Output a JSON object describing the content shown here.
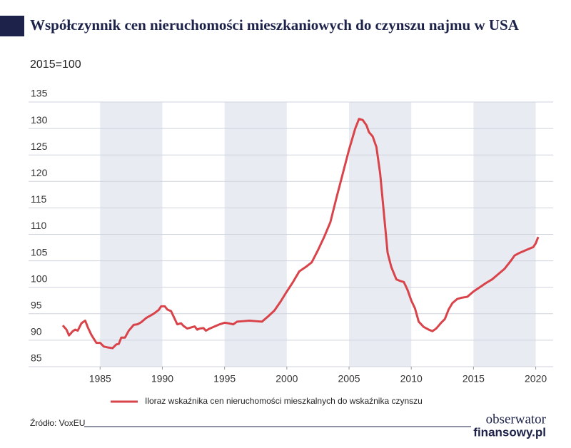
{
  "chart_data": {
    "type": "line",
    "title": "Współczynnik cen nieruchomości mieszkaniowych do czynszu najmu w USA",
    "subtitle": "2015=100",
    "x": [
      1982.0,
      1982.3,
      1982.5,
      1982.8,
      1983.0,
      1983.2,
      1983.5,
      1983.8,
      1984.0,
      1984.3,
      1984.7,
      1985.0,
      1985.3,
      1985.7,
      1986.0,
      1986.3,
      1986.5,
      1986.7,
      1987.0,
      1987.3,
      1987.7,
      1988.0,
      1988.3,
      1988.7,
      1989.0,
      1989.3,
      1989.7,
      1989.9,
      1990.2,
      1990.4,
      1990.7,
      1991.0,
      1991.2,
      1991.5,
      1991.7,
      1992.0,
      1992.3,
      1992.6,
      1992.8,
      1993.0,
      1993.3,
      1993.5,
      1993.8,
      1994.2,
      1994.6,
      1995.0,
      1995.3,
      1995.7,
      1996.0,
      1996.5,
      1997.0,
      1997.5,
      1998.0,
      1998.5,
      1999.0,
      1999.5,
      2000.0,
      2000.5,
      2001.0,
      2001.5,
      2002.0,
      2002.5,
      2003.0,
      2003.5,
      2004.0,
      2004.5,
      2005.0,
      2005.5,
      2005.8,
      2006.1,
      2006.4,
      2006.6,
      2006.9,
      2007.2,
      2007.5,
      2007.8,
      2008.1,
      2008.4,
      2008.8,
      2009.1,
      2009.4,
      2009.7,
      2010.0,
      2010.3,
      2010.6,
      2011.0,
      2011.4,
      2011.7,
      2012.0,
      2012.4,
      2012.7,
      2013.0,
      2013.3,
      2013.7,
      2014.0,
      2014.5,
      2015.0,
      2015.5,
      2016.0,
      2016.5,
      2017.0,
      2017.5,
      2018.0,
      2018.3,
      2018.7,
      2019.0,
      2019.5,
      2019.8,
      2020.0,
      2020.2
    ],
    "series": [
      {
        "name": "Iloraz wskaźnika cen nieruchomości mieszkalnych do wskaźnika czynszu",
        "color": "#d9434a",
        "values": [
          92.8,
          92.0,
          90.9,
          91.7,
          92.0,
          91.8,
          93.2,
          93.7,
          92.5,
          91.0,
          89.5,
          89.5,
          88.8,
          88.6,
          88.5,
          89.2,
          89.3,
          90.5,
          90.5,
          91.8,
          92.9,
          93.0,
          93.4,
          94.2,
          94.6,
          95.0,
          95.7,
          96.4,
          96.4,
          95.8,
          95.5,
          94.0,
          93.0,
          93.2,
          92.7,
          92.2,
          92.4,
          92.6,
          92.0,
          92.2,
          92.3,
          91.8,
          92.2,
          92.6,
          93.0,
          93.3,
          93.2,
          93.0,
          93.5,
          93.6,
          93.7,
          93.6,
          93.5,
          94.5,
          95.6,
          97.3,
          99.2,
          101.0,
          103.0,
          103.8,
          104.7,
          107.0,
          109.5,
          112.3,
          117.0,
          121.5,
          126.0,
          130.0,
          131.8,
          131.6,
          130.6,
          129.3,
          128.5,
          126.5,
          121.5,
          114.0,
          106.5,
          103.8,
          101.5,
          101.2,
          101.0,
          99.5,
          97.5,
          96.0,
          93.5,
          92.5,
          92.0,
          91.7,
          92.2,
          93.3,
          94.0,
          95.8,
          97.0,
          97.8,
          98.0,
          98.2,
          99.2,
          100.0,
          100.8,
          101.5,
          102.5,
          103.5,
          105.0,
          106.0,
          106.5,
          106.8,
          107.3,
          107.6,
          108.3,
          109.5
        ]
      }
    ],
    "xlim": [
      1979.25,
      2021.4
    ],
    "xticks": [
      1985,
      1990,
      1995,
      2000,
      2005,
      2010,
      2015,
      2020
    ],
    "ylim": [
      85,
      135
    ],
    "yticks": [
      85,
      90,
      95,
      100,
      105,
      110,
      115,
      120,
      125,
      130,
      135
    ],
    "grid": true
  },
  "source": "Źródło: VoxEU",
  "logo": {
    "line1": "obserwator",
    "line2": "finansowy.pl"
  }
}
